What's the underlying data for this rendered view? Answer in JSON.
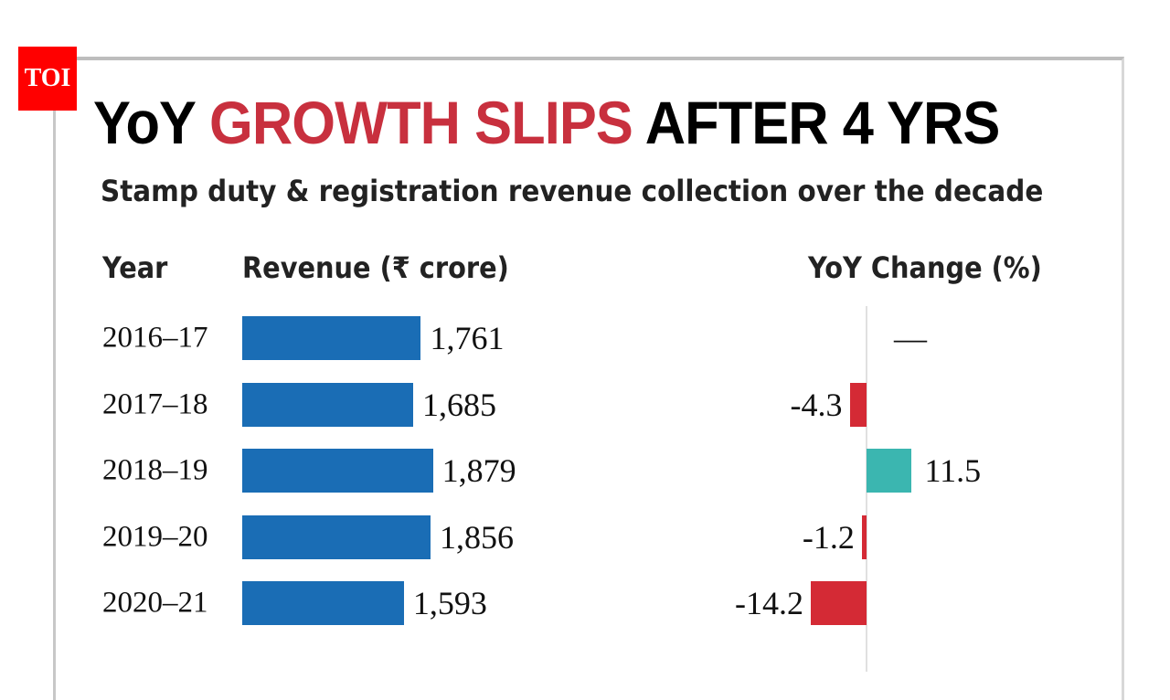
{
  "logo": "TOI",
  "chart_data": {
    "type": "bar",
    "title_parts": [
      "YoY",
      "GROWTH SLIPS",
      "AFTER 4 YRS"
    ],
    "subtitle": "Stamp duty & registration revenue collection over the decade",
    "column_headers": {
      "year": "Year",
      "revenue": "Revenue (₹ crore)",
      "yoy": "YoY Change (%)"
    },
    "categories": [
      "2016–17",
      "2017–18",
      "2018–19",
      "2019–20",
      "2020–21"
    ],
    "series": [
      {
        "name": "Revenue (₹ crore)",
        "values": [
          1761,
          1685,
          1879,
          1856,
          1593
        ],
        "labels": [
          "1,761",
          "1,685",
          "1,879",
          "1,856",
          "1,593"
        ]
      },
      {
        "name": "YoY Change (%)",
        "values": [
          null,
          -4.3,
          11.5,
          -1.2,
          -14.2
        ],
        "labels": [
          "—",
          "-4.3",
          "11.5",
          "-1.2",
          "-14.2"
        ]
      }
    ],
    "colors": {
      "revenue": "#1a6db5",
      "negative": "#d42a35",
      "positive": "#3bb6b0",
      "title_accent": "#c8303e"
    }
  }
}
